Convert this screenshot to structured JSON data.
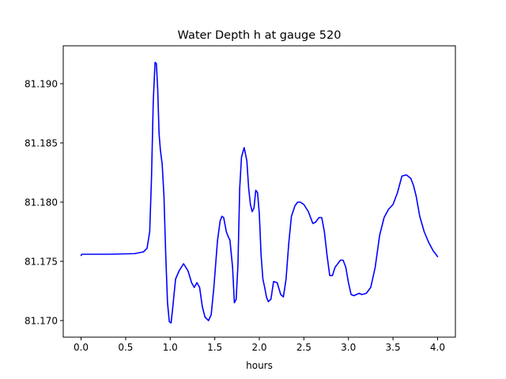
{
  "chart_data": {
    "type": "line",
    "title": "Water Depth h at gauge 520",
    "xlabel": "hours",
    "ylabel": "",
    "xlim": [
      -0.2,
      4.2
    ],
    "ylim": [
      81.1686,
      81.1932
    ],
    "x_ticks": [
      0.0,
      0.5,
      1.0,
      1.5,
      2.0,
      2.5,
      3.0,
      3.5,
      4.0
    ],
    "x_tick_labels": [
      "0.0",
      "0.5",
      "1.0",
      "1.5",
      "2.0",
      "2.5",
      "3.0",
      "3.5",
      "4.0"
    ],
    "y_ticks": [
      81.17,
      81.175,
      81.18,
      81.185,
      81.19
    ],
    "y_tick_labels": [
      "81.170",
      "81.175",
      "81.180",
      "81.185",
      "81.190"
    ],
    "grid": false,
    "series": [
      {
        "color": "#0000ff",
        "x": [
          0.0,
          0.01,
          0.3,
          0.6,
          0.7,
          0.74,
          0.77,
          0.79,
          0.81,
          0.83,
          0.845,
          0.86,
          0.875,
          0.89,
          0.9,
          0.91,
          0.93,
          0.95,
          0.97,
          0.99,
          1.01,
          1.03,
          1.06,
          1.1,
          1.15,
          1.2,
          1.24,
          1.27,
          1.3,
          1.33,
          1.36,
          1.39,
          1.43,
          1.46,
          1.49,
          1.53,
          1.56,
          1.58,
          1.6,
          1.63,
          1.65,
          1.67,
          1.7,
          1.72,
          1.74,
          1.76,
          1.78,
          1.8,
          1.83,
          1.86,
          1.88,
          1.9,
          1.92,
          1.94,
          1.96,
          1.98,
          2.0,
          2.02,
          2.04,
          2.06,
          2.08,
          2.1,
          2.13,
          2.16,
          2.2,
          2.24,
          2.27,
          2.3,
          2.33,
          2.36,
          2.4,
          2.43,
          2.46,
          2.5,
          2.55,
          2.6,
          2.63,
          2.67,
          2.7,
          2.73,
          2.76,
          2.79,
          2.82,
          2.85,
          2.88,
          2.91,
          2.94,
          2.97,
          3.0,
          3.03,
          3.06,
          3.09,
          3.12,
          3.15,
          3.2,
          3.25,
          3.3,
          3.35,
          3.4,
          3.45,
          3.5,
          3.55,
          3.6,
          3.65,
          3.7,
          3.73,
          3.76,
          3.8,
          3.85,
          3.9,
          3.95,
          4.0
        ],
        "y": [
          81.1755,
          81.1756,
          81.1756,
          81.17565,
          81.1758,
          81.1761,
          81.1775,
          81.182,
          81.1885,
          81.1918,
          81.1917,
          81.1895,
          81.1858,
          81.1844,
          81.1838,
          81.1832,
          81.1805,
          81.1755,
          81.1715,
          81.1699,
          81.1698,
          81.1712,
          81.1735,
          81.1742,
          81.1748,
          81.1742,
          81.1732,
          81.1728,
          81.1732,
          81.1728,
          81.1712,
          81.1703,
          81.17,
          81.1705,
          81.1728,
          81.1767,
          81.1784,
          81.1788,
          81.1787,
          81.1775,
          81.1771,
          81.1768,
          81.1745,
          81.1715,
          81.1718,
          81.1747,
          81.1812,
          81.1838,
          81.1846,
          81.1835,
          81.1812,
          81.1798,
          81.1792,
          81.1795,
          81.181,
          81.1808,
          81.179,
          81.1755,
          81.1735,
          81.1728,
          81.172,
          81.1716,
          81.1718,
          81.1733,
          81.1732,
          81.1722,
          81.172,
          81.1735,
          81.1765,
          81.1788,
          81.1797,
          81.18,
          81.18,
          81.1798,
          81.1792,
          81.1782,
          81.1783,
          81.1787,
          81.1787,
          81.1775,
          81.1755,
          81.1738,
          81.1738,
          81.1745,
          81.1748,
          81.1751,
          81.1751,
          81.1745,
          81.1732,
          81.1722,
          81.1721,
          81.1722,
          81.1723,
          81.1722,
          81.1723,
          81.1728,
          81.1745,
          81.1772,
          81.1787,
          81.1794,
          81.1798,
          81.1808,
          81.1822,
          81.1823,
          81.182,
          81.1814,
          81.1805,
          81.1788,
          81.1775,
          81.1766,
          81.1759,
          81.1754
        ]
      }
    ]
  }
}
